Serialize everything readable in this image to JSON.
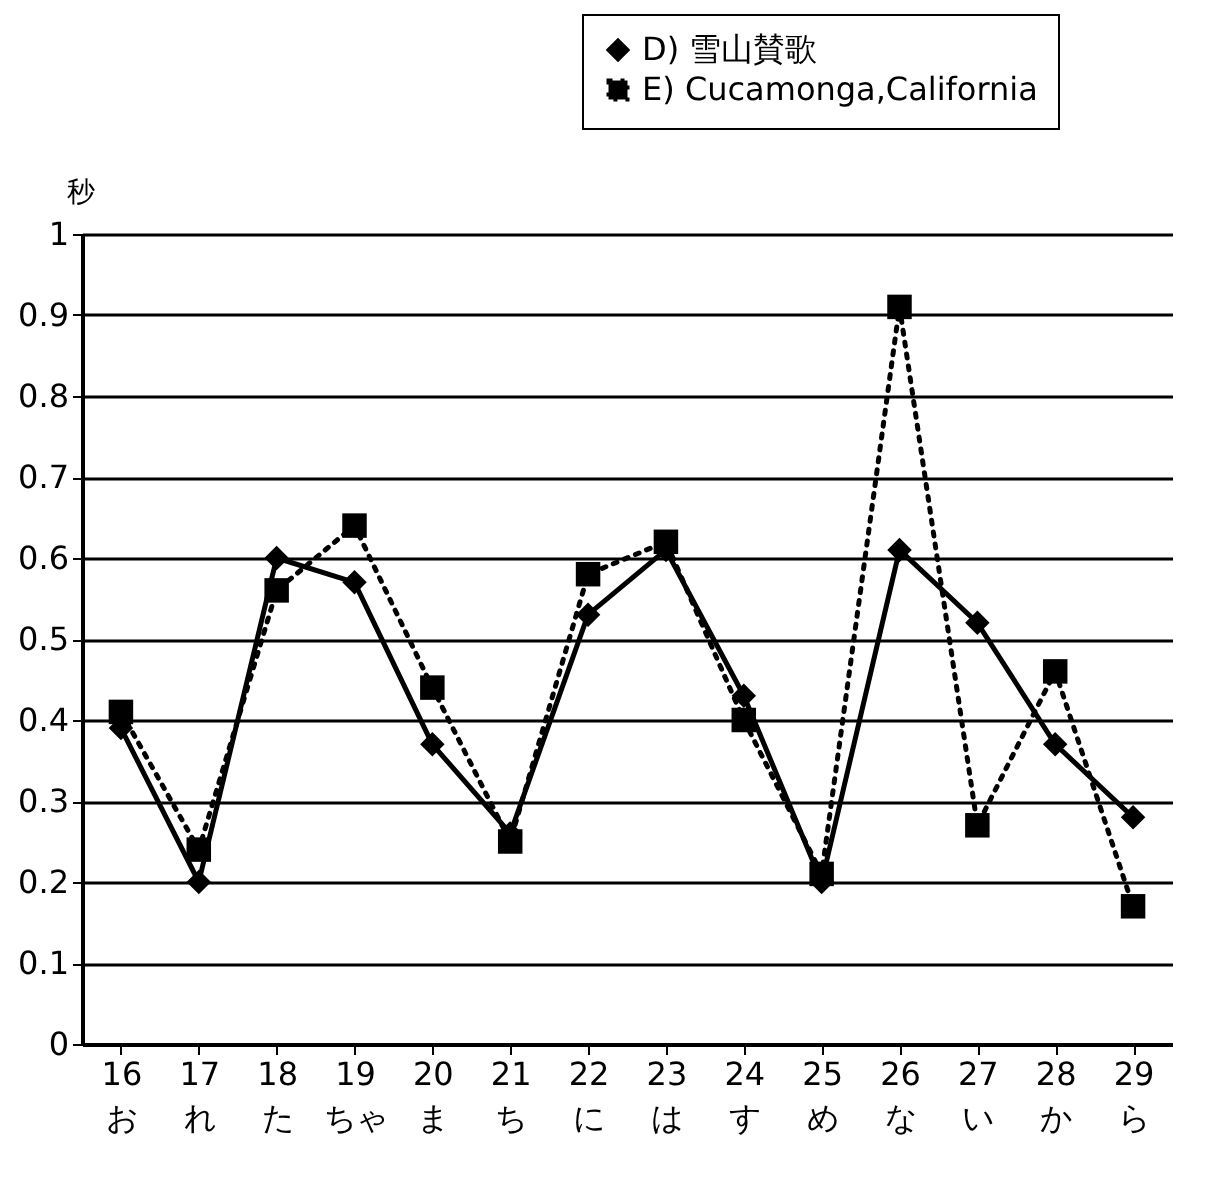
{
  "chart_data": {
    "type": "line",
    "ylabel": "秒",
    "categories": [
      "16\nお",
      "17\nれ",
      "18\nた",
      "19\nちゃ",
      "20\nま",
      "21\nち",
      "22\nに",
      "23\nは",
      "24\nす",
      "25\nめ",
      "26\nな",
      "27\nい",
      "28\nか",
      "29\nら"
    ],
    "series": [
      {
        "name": "D) 雪山賛歌",
        "color": "#000000",
        "marker": "diamond",
        "line_style": "solid",
        "values": [
          0.39,
          0.2,
          0.6,
          0.57,
          0.37,
          0.26,
          0.53,
          0.61,
          0.43,
          0.2,
          0.61,
          0.52,
          0.37,
          0.28
        ]
      },
      {
        "name": "E) Cucamonga,California",
        "color": "#000000",
        "marker": "square",
        "line_style": "dotted",
        "values": [
          0.41,
          0.24,
          0.56,
          0.64,
          0.44,
          0.25,
          0.58,
          0.62,
          0.4,
          0.21,
          0.91,
          0.27,
          0.46,
          0.17
        ]
      }
    ],
    "ylim": [
      0,
      1
    ],
    "yticks": [
      0,
      0.1,
      0.2,
      0.3,
      0.4,
      0.5,
      0.6,
      0.7,
      0.8,
      0.9,
      1
    ],
    "grid": "y",
    "legend": "top right"
  }
}
